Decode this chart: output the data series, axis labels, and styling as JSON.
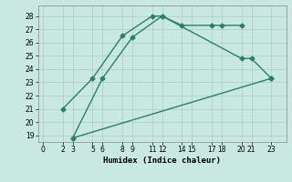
{
  "line1": {
    "x": [
      2,
      5,
      8,
      11,
      12,
      14,
      17,
      18,
      20
    ],
    "y": [
      21,
      23.3,
      26.5,
      28,
      28,
      27.3,
      27.3,
      27.3,
      27.3
    ]
  },
  "line2": {
    "x": [
      3,
      6,
      9,
      12,
      20,
      21,
      23
    ],
    "y": [
      18.8,
      23.3,
      26.4,
      28,
      24.8,
      24.8,
      23.3
    ]
  },
  "line3": {
    "x": [
      3,
      23
    ],
    "y": [
      18.8,
      23.3
    ]
  },
  "color": "#2d7d6e",
  "bg_color": "#c8e8e0",
  "grid_color": "#a8cfc8",
  "xlabel": "Humidex (Indice chaleur)",
  "xticks": [
    0,
    2,
    3,
    5,
    6,
    8,
    9,
    11,
    12,
    14,
    15,
    17,
    18,
    20,
    21,
    23
  ],
  "yticks": [
    19,
    20,
    21,
    22,
    23,
    24,
    25,
    26,
    27,
    28
  ],
  "xlim": [
    -0.5,
    24.5
  ],
  "ylim": [
    18.5,
    28.8
  ],
  "marker": "D",
  "markersize": 2.5,
  "linewidth": 1.0
}
